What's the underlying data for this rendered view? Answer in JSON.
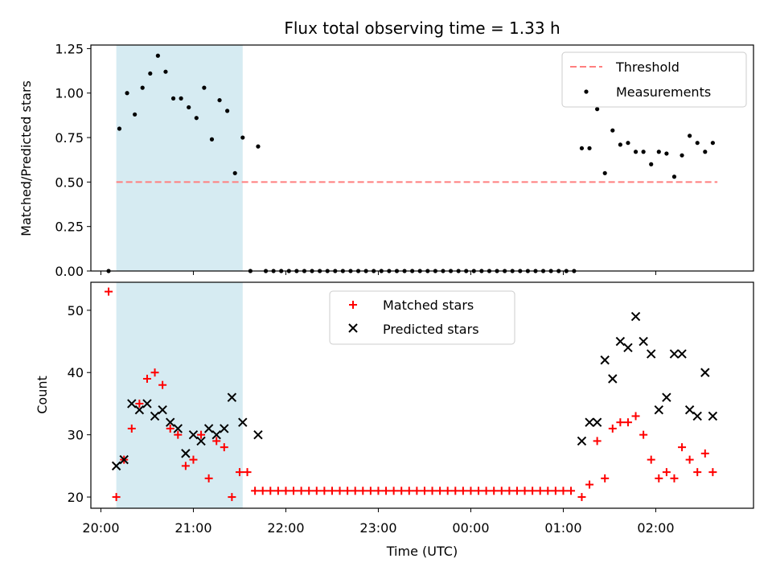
{
  "chart_data": [
    {
      "type": "scatter",
      "title": "Flux total observing time = 1.33 h",
      "xlabel": "",
      "ylabel": "Matched/Predicted stars",
      "ylim": [
        0,
        1.27
      ],
      "yticks": [
        "0.00",
        "0.25",
        "0.50",
        "0.75",
        "1.00",
        "1.25"
      ],
      "shaded_region": {
        "x_start": "20:10",
        "x_end": "21:32",
        "color": "#add8e6"
      },
      "threshold": {
        "name": "Threshold",
        "value": 0.5,
        "x_start": "20:10",
        "x_end": "02:40",
        "color": "#ff7f7f"
      },
      "legend": {
        "placement": "top-right",
        "entries": [
          "Threshold",
          "Measurements"
        ]
      },
      "series": [
        {
          "name": "Measurements",
          "color": "#000000",
          "points": [
            [
              "20:05",
              0.0
            ],
            [
              "20:12",
              0.8
            ],
            [
              "20:17",
              1.0
            ],
            [
              "20:22",
              0.88
            ],
            [
              "20:27",
              1.03
            ],
            [
              "20:32",
              1.11
            ],
            [
              "20:37",
              1.21
            ],
            [
              "20:42",
              1.12
            ],
            [
              "20:47",
              0.97
            ],
            [
              "20:52",
              0.97
            ],
            [
              "20:57",
              0.92
            ],
            [
              "21:02",
              0.86
            ],
            [
              "21:07",
              1.03
            ],
            [
              "21:12",
              0.74
            ],
            [
              "21:17",
              0.96
            ],
            [
              "21:22",
              0.9
            ],
            [
              "21:27",
              0.55
            ],
            [
              "21:32",
              0.75
            ],
            [
              "21:37",
              0.0
            ],
            [
              "21:42",
              0.7
            ],
            [
              "21:47",
              0.0
            ],
            [
              "21:52",
              0.0
            ],
            [
              "21:57",
              0.0
            ],
            [
              "22:02",
              0.0
            ],
            [
              "22:07",
              0.0
            ],
            [
              "22:12",
              0.0
            ],
            [
              "22:17",
              0.0
            ],
            [
              "22:22",
              0.0
            ],
            [
              "22:27",
              0.0
            ],
            [
              "22:32",
              0.0
            ],
            [
              "22:37",
              0.0
            ],
            [
              "22:42",
              0.0
            ],
            [
              "22:47",
              0.0
            ],
            [
              "22:52",
              0.0
            ],
            [
              "22:57",
              0.0
            ],
            [
              "23:02",
              0.0
            ],
            [
              "23:07",
              0.0
            ],
            [
              "23:12",
              0.0
            ],
            [
              "23:17",
              0.0
            ],
            [
              "23:22",
              0.0
            ],
            [
              "23:27",
              0.0
            ],
            [
              "23:32",
              0.0
            ],
            [
              "23:37",
              0.0
            ],
            [
              "23:42",
              0.0
            ],
            [
              "23:47",
              0.0
            ],
            [
              "23:52",
              0.0
            ],
            [
              "23:57",
              0.0
            ],
            [
              "00:02",
              0.0
            ],
            [
              "00:07",
              0.0
            ],
            [
              "00:12",
              0.0
            ],
            [
              "00:17",
              0.0
            ],
            [
              "00:22",
              0.0
            ],
            [
              "00:27",
              0.0
            ],
            [
              "00:32",
              0.0
            ],
            [
              "00:37",
              0.0
            ],
            [
              "00:42",
              0.0
            ],
            [
              "00:47",
              0.0
            ],
            [
              "00:52",
              0.0
            ],
            [
              "00:57",
              0.0
            ],
            [
              "01:02",
              0.0
            ],
            [
              "01:07",
              0.0
            ],
            [
              "01:12",
              0.69
            ],
            [
              "01:17",
              0.69
            ],
            [
              "01:22",
              0.91
            ],
            [
              "01:27",
              0.55
            ],
            [
              "01:32",
              0.79
            ],
            [
              "01:37",
              0.71
            ],
            [
              "01:42",
              0.72
            ],
            [
              "01:47",
              0.67
            ],
            [
              "01:52",
              0.67
            ],
            [
              "01:57",
              0.6
            ],
            [
              "02:02",
              0.67
            ],
            [
              "02:07",
              0.66
            ],
            [
              "02:12",
              0.53
            ],
            [
              "02:17",
              0.65
            ],
            [
              "02:22",
              0.76
            ],
            [
              "02:27",
              0.72
            ],
            [
              "02:32",
              0.67
            ],
            [
              "02:37",
              0.72
            ]
          ]
        }
      ]
    },
    {
      "type": "scatter",
      "title": "",
      "xlabel": "Time (UTC)",
      "ylabel": "Count",
      "ylim": [
        18.2,
        54.5
      ],
      "yticks": [
        "20",
        "30",
        "40",
        "50"
      ],
      "xticks": [
        "20:00",
        "21:00",
        "22:00",
        "23:00",
        "00:00",
        "01:00",
        "02:00"
      ],
      "shaded_region": {
        "x_start": "20:10",
        "x_end": "21:32",
        "color": "#add8e6"
      },
      "legend": {
        "placement": "top-center",
        "entries": [
          "Matched stars",
          "Predicted stars"
        ]
      },
      "series": [
        {
          "name": "Matched stars",
          "marker": "plus",
          "color": "#ff0000",
          "points": [
            [
              "20:05",
              53
            ],
            [
              "20:10",
              20
            ],
            [
              "20:15",
              26
            ],
            [
              "20:20",
              31
            ],
            [
              "20:25",
              35
            ],
            [
              "20:30",
              39
            ],
            [
              "20:35",
              40
            ],
            [
              "20:40",
              38
            ],
            [
              "20:45",
              31
            ],
            [
              "20:50",
              30
            ],
            [
              "20:55",
              25
            ],
            [
              "21:00",
              26
            ],
            [
              "21:05",
              30
            ],
            [
              "21:10",
              23
            ],
            [
              "21:15",
              29
            ],
            [
              "21:20",
              28
            ],
            [
              "21:25",
              20
            ],
            [
              "21:30",
              24
            ],
            [
              "21:35",
              24
            ],
            [
              "21:40",
              21
            ],
            [
              "21:45",
              21
            ],
            [
              "21:50",
              21
            ],
            [
              "21:55",
              21
            ],
            [
              "22:00",
              21
            ],
            [
              "22:05",
              21
            ],
            [
              "22:10",
              21
            ],
            [
              "22:15",
              21
            ],
            [
              "22:20",
              21
            ],
            [
              "22:25",
              21
            ],
            [
              "22:30",
              21
            ],
            [
              "22:35",
              21
            ],
            [
              "22:40",
              21
            ],
            [
              "22:45",
              21
            ],
            [
              "22:50",
              21
            ],
            [
              "22:55",
              21
            ],
            [
              "23:00",
              21
            ],
            [
              "23:05",
              21
            ],
            [
              "23:10",
              21
            ],
            [
              "23:15",
              21
            ],
            [
              "23:20",
              21
            ],
            [
              "23:25",
              21
            ],
            [
              "23:30",
              21
            ],
            [
              "23:35",
              21
            ],
            [
              "23:40",
              21
            ],
            [
              "23:45",
              21
            ],
            [
              "23:50",
              21
            ],
            [
              "23:55",
              21
            ],
            [
              "00:00",
              21
            ],
            [
              "00:05",
              21
            ],
            [
              "00:10",
              21
            ],
            [
              "00:15",
              21
            ],
            [
              "00:20",
              21
            ],
            [
              "00:25",
              21
            ],
            [
              "00:30",
              21
            ],
            [
              "00:35",
              21
            ],
            [
              "00:40",
              21
            ],
            [
              "00:45",
              21
            ],
            [
              "00:50",
              21
            ],
            [
              "00:55",
              21
            ],
            [
              "01:00",
              21
            ],
            [
              "01:05",
              21
            ],
            [
              "01:12",
              20
            ],
            [
              "01:17",
              22
            ],
            [
              "01:22",
              29
            ],
            [
              "01:27",
              23
            ],
            [
              "01:32",
              31
            ],
            [
              "01:37",
              32
            ],
            [
              "01:42",
              32
            ],
            [
              "01:47",
              33
            ],
            [
              "01:52",
              30
            ],
            [
              "01:57",
              26
            ],
            [
              "02:02",
              23
            ],
            [
              "02:07",
              24
            ],
            [
              "02:12",
              23
            ],
            [
              "02:17",
              28
            ],
            [
              "02:22",
              26
            ],
            [
              "02:27",
              24
            ],
            [
              "02:32",
              27
            ],
            [
              "02:37",
              24
            ]
          ]
        },
        {
          "name": "Predicted stars",
          "marker": "x",
          "color": "#000000",
          "points": [
            [
              "20:10",
              25
            ],
            [
              "20:15",
              26
            ],
            [
              "20:20",
              35
            ],
            [
              "20:25",
              34
            ],
            [
              "20:30",
              35
            ],
            [
              "20:35",
              33
            ],
            [
              "20:40",
              34
            ],
            [
              "20:45",
              32
            ],
            [
              "20:50",
              31
            ],
            [
              "20:55",
              27
            ],
            [
              "21:00",
              30
            ],
            [
              "21:05",
              29
            ],
            [
              "21:10",
              31
            ],
            [
              "21:15",
              30
            ],
            [
              "21:20",
              31
            ],
            [
              "21:25",
              36
            ],
            [
              "21:32",
              32
            ],
            [
              "21:42",
              30
            ],
            [
              "01:12",
              29
            ],
            [
              "01:17",
              32
            ],
            [
              "01:22",
              32
            ],
            [
              "01:27",
              42
            ],
            [
              "01:32",
              39
            ],
            [
              "01:37",
              45
            ],
            [
              "01:42",
              44
            ],
            [
              "01:47",
              49
            ],
            [
              "01:52",
              45
            ],
            [
              "01:57",
              43
            ],
            [
              "02:02",
              34
            ],
            [
              "02:07",
              36
            ],
            [
              "02:12",
              43
            ],
            [
              "02:17",
              43
            ],
            [
              "02:22",
              34
            ],
            [
              "02:27",
              33
            ],
            [
              "02:32",
              40
            ],
            [
              "02:37",
              33
            ]
          ]
        }
      ]
    }
  ]
}
